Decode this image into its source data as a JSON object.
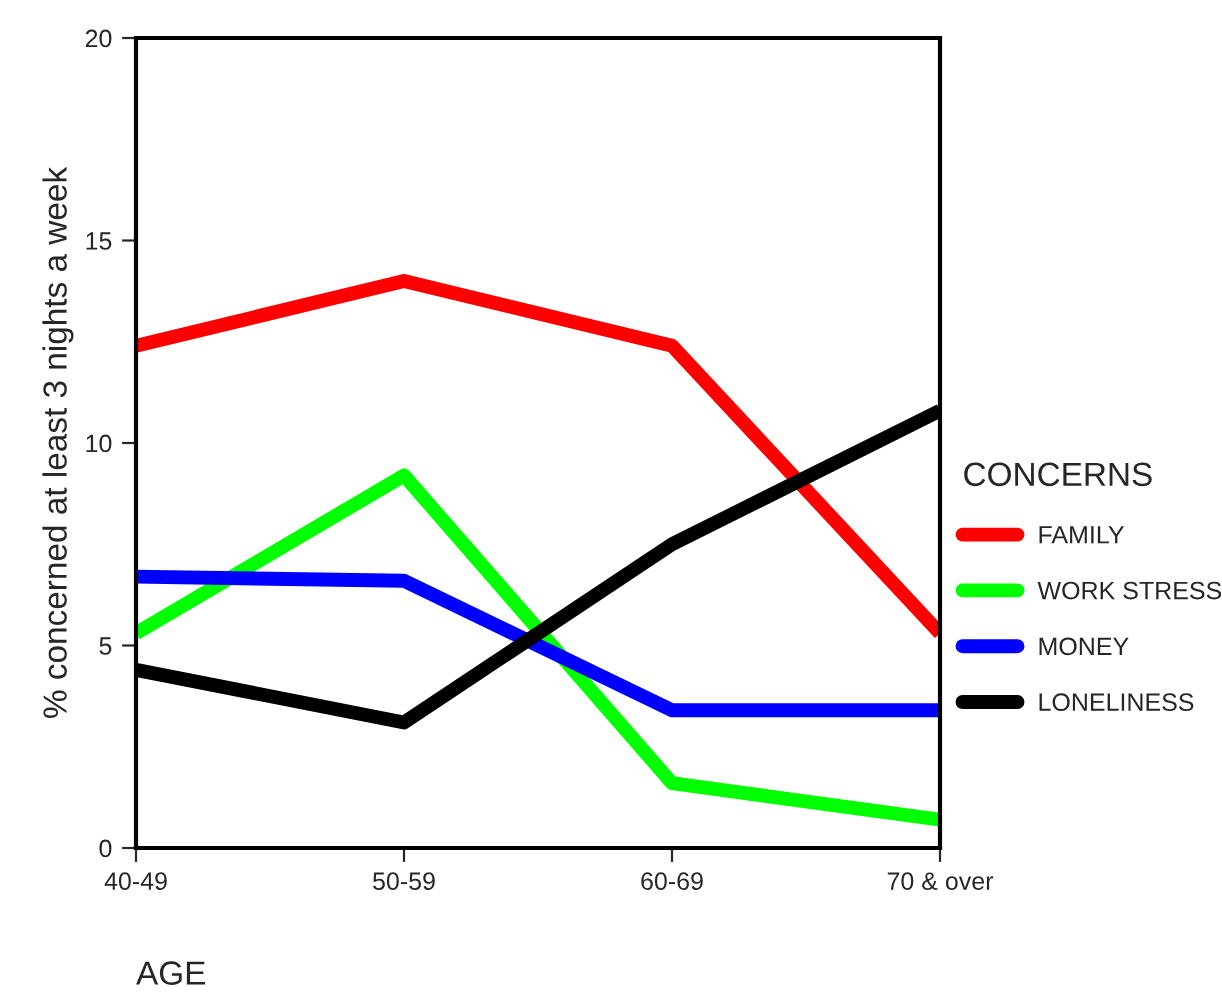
{
  "chart_data": {
    "type": "line",
    "xlabel": "AGE",
    "ylabel": "% concerned at least 3 nights a week",
    "legend_title": "CONCERNS",
    "legend": "right",
    "grid": false,
    "line_style": "solid",
    "marker": "none",
    "categories": [
      "40-49",
      "50-59",
      "60-69",
      "70 & over"
    ],
    "ylim": [
      0,
      20
    ],
    "yticks": [
      0,
      5,
      10,
      15,
      20
    ],
    "series": [
      {
        "name": "FAMILY",
        "color": "#ff0000",
        "values": [
          12.4,
          14.0,
          12.4,
          5.3
        ]
      },
      {
        "name": "WORK STRESS",
        "color": "#00ff00",
        "values": [
          5.3,
          9.2,
          1.6,
          0.7
        ]
      },
      {
        "name": "MONEY",
        "color": "#0000ff",
        "values": [
          6.7,
          6.6,
          3.4,
          3.4
        ]
      },
      {
        "name": "LONELINESS",
        "color": "#000000",
        "values": [
          4.4,
          3.1,
          7.5,
          10.8
        ]
      }
    ]
  }
}
